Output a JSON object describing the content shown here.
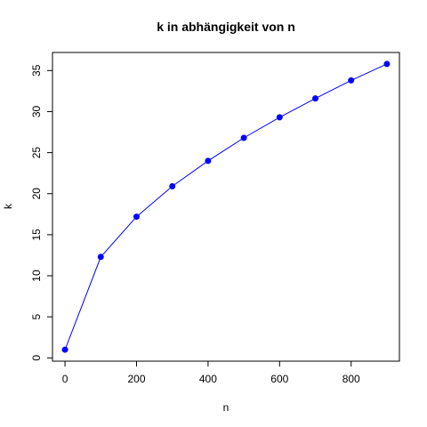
{
  "chart_data": {
    "type": "line",
    "title": "k in abhängigkeit von n",
    "xlabel": "n",
    "ylabel": "k",
    "xlim": [
      -35,
      935
    ],
    "ylim": [
      -0.4,
      37.2
    ],
    "xticks": [
      0,
      200,
      400,
      600,
      800
    ],
    "yticks": [
      0,
      5,
      10,
      15,
      20,
      25,
      30,
      35
    ],
    "grid": false,
    "legend": "none",
    "series": [
      {
        "x": [
          0,
          100,
          200,
          300,
          400,
          500,
          600,
          700,
          800,
          900
        ],
        "y": [
          1.0,
          12.3,
          17.2,
          20.9,
          24.0,
          26.8,
          29.3,
          31.6,
          33.8,
          35.8
        ]
      }
    ],
    "colors": {
      "series": "#0000ff",
      "axis": "#000000"
    }
  }
}
